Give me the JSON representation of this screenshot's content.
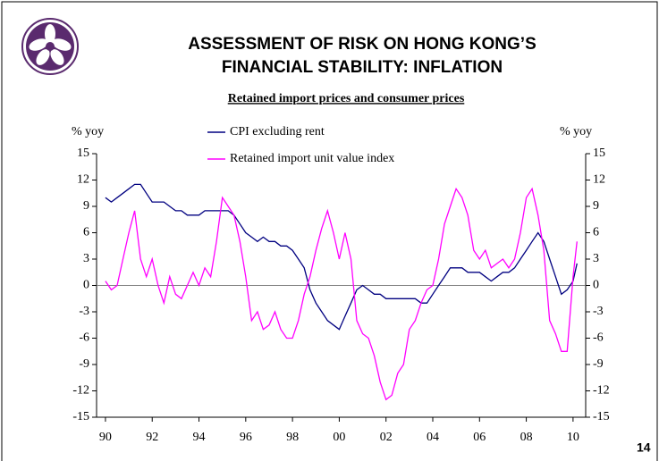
{
  "title": "ASSESSMENT OF RISK ON HONG KONG’S",
  "title_line2": "FINANCIAL STABILITY: INFLATION",
  "page_number": "14",
  "chart_data": {
    "type": "line",
    "title": "Retained import prices and consumer prices",
    "ylabel": "% yoy",
    "y2label": "% yoy",
    "x": [
      1990,
      1990.25,
      1990.5,
      1990.75,
      1991,
      1991.25,
      1991.5,
      1991.75,
      1992,
      1992.25,
      1992.5,
      1992.75,
      1993,
      1993.25,
      1993.5,
      1993.75,
      1994,
      1994.25,
      1994.5,
      1994.75,
      1995,
      1995.25,
      1995.5,
      1995.75,
      1996,
      1996.25,
      1996.5,
      1996.75,
      1997,
      1997.25,
      1997.5,
      1997.75,
      1998,
      1998.25,
      1998.5,
      1998.75,
      1999,
      1999.25,
      1999.5,
      1999.75,
      2000,
      2000.25,
      2000.5,
      2000.75,
      2001,
      2001.25,
      2001.5,
      2001.75,
      2002,
      2002.25,
      2002.5,
      2002.75,
      2003,
      2003.25,
      2003.5,
      2003.75,
      2004,
      2004.25,
      2004.5,
      2004.75,
      2005,
      2005.25,
      2005.5,
      2005.75,
      2006,
      2006.25,
      2006.5,
      2006.75,
      2007,
      2007.25,
      2007.5,
      2007.75,
      2008,
      2008.25,
      2008.5,
      2008.75,
      2009,
      2009.25,
      2009.5,
      2009.75,
      2010,
      2010.17
    ],
    "series": [
      {
        "name": "CPI excluding rent",
        "color": "#000080",
        "values": [
          10,
          9.5,
          10,
          10.5,
          11,
          11.5,
          11.5,
          10.5,
          9.5,
          9.5,
          9.5,
          9,
          8.5,
          8.5,
          8,
          8,
          8,
          8.5,
          8.5,
          8.5,
          8.5,
          8.5,
          8,
          7,
          6,
          5.5,
          5,
          5.5,
          5,
          5,
          4.5,
          4.5,
          4,
          3,
          2,
          -0.5,
          -2,
          -3,
          -4,
          -4.5,
          -5,
          -3.5,
          -2,
          -0.5,
          0,
          -0.5,
          -1,
          -1,
          -1.5,
          -1.5,
          -1.5,
          -1.5,
          -1.5,
          -1.5,
          -2,
          -2,
          -1,
          0,
          1,
          2,
          2,
          2,
          1.5,
          1.5,
          1.5,
          1,
          0.5,
          1,
          1.5,
          1.5,
          2,
          3,
          4,
          5,
          6,
          5,
          3,
          1,
          -1,
          -0.5,
          0.5,
          2.5
        ]
      },
      {
        "name": "Retained import unit value index",
        "color": "#ff00ff",
        "values": [
          0.5,
          -0.5,
          0,
          3,
          6,
          8.5,
          3,
          1,
          3,
          0,
          -2,
          1,
          -1,
          -1.5,
          0,
          1.5,
          0,
          2,
          1,
          5,
          10,
          9,
          8,
          5,
          1,
          -4,
          -3,
          -5,
          -4.5,
          -3,
          -5,
          -6,
          -6,
          -4,
          -1,
          1,
          4,
          6.5,
          8.5,
          6,
          3,
          6,
          3,
          -4,
          -5.5,
          -6,
          -8,
          -11,
          -13,
          -12.5,
          -10,
          -9,
          -5,
          -4,
          -2,
          -0.5,
          0,
          3,
          7,
          9,
          11,
          10,
          8,
          4,
          3,
          4,
          2,
          2.5,
          3,
          2,
          3,
          6,
          10,
          11,
          8,
          4,
          -4,
          -5.5,
          -7.5,
          -7.5,
          1,
          5
        ]
      }
    ],
    "xlim": [
      1989.62,
      2010.54
    ],
    "xticks": [
      {
        "value": 1990,
        "label": "90"
      },
      {
        "value": 1992,
        "label": "92"
      },
      {
        "value": 1994,
        "label": "94"
      },
      {
        "value": 1996,
        "label": "96"
      },
      {
        "value": 1998,
        "label": "98"
      },
      {
        "value": 2000,
        "label": "00"
      },
      {
        "value": 2002,
        "label": "02"
      },
      {
        "value": 2004,
        "label": "04"
      },
      {
        "value": 2006,
        "label": "06"
      },
      {
        "value": 2008,
        "label": "08"
      },
      {
        "value": 2010,
        "label": "10"
      }
    ],
    "ylim": [
      -15,
      15
    ],
    "yticks": [
      -15,
      -12,
      -9,
      -6,
      -3,
      0,
      3,
      6,
      9,
      12,
      15
    ],
    "y2lim": [
      -15,
      15
    ],
    "y2ticks": [
      -15,
      -12,
      -9,
      -6,
      -3,
      0,
      3,
      6,
      9,
      12,
      15
    ]
  }
}
